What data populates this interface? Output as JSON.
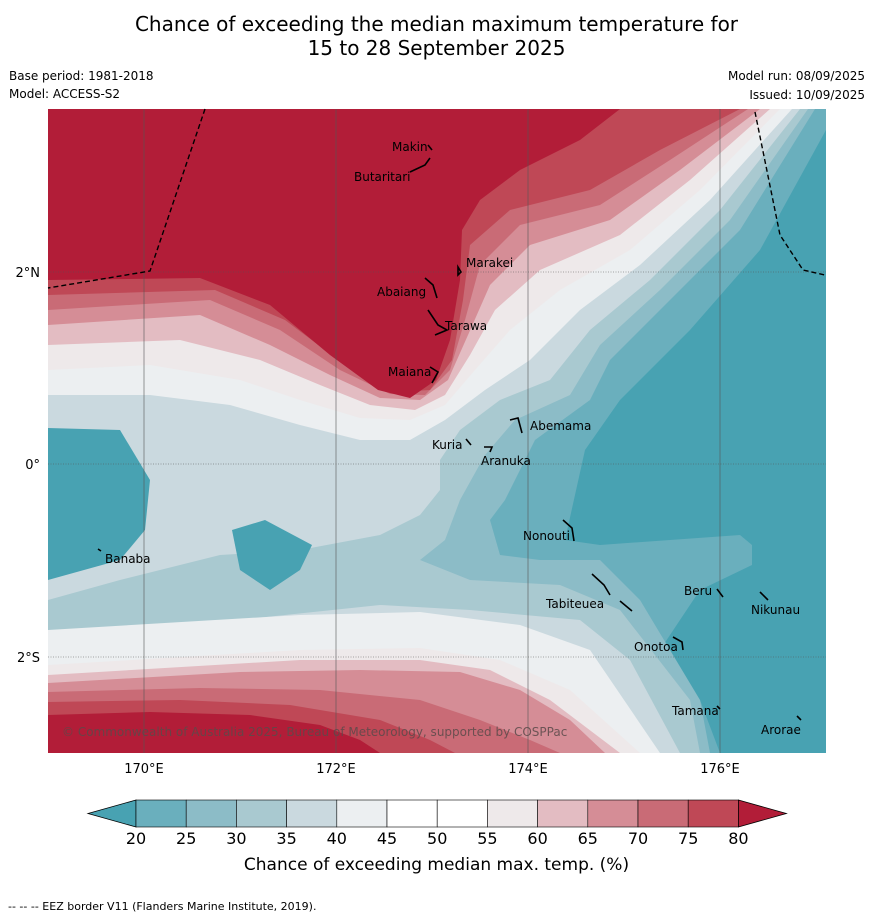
{
  "title_line1": "Chance of exceeding the median maximum temperature for",
  "title_line2": "15 to 28 September 2025",
  "base_period": "Base period: 1981-2018",
  "model": "Model: ACCESS-S2",
  "model_run": "Model run: 08/09/2025",
  "issued": "Issued: 10/09/2025",
  "copyright": "© Commonwealth of Australia 2025, Bureau of Meteorology, supported by COSPPac",
  "footer": "--  --  -- EEZ border V11 (Flanders Marine Institute, 2019).",
  "lat_labels": [
    "2°N",
    "0°",
    "2°S"
  ],
  "lon_labels": [
    "170°E",
    "172°E",
    "174°E",
    "176°E"
  ],
  "places": [
    {
      "name": "Makin"
    },
    {
      "name": "Butaritari"
    },
    {
      "name": "Marakei"
    },
    {
      "name": "Abaiang"
    },
    {
      "name": "Tarawa"
    },
    {
      "name": "Maiana"
    },
    {
      "name": "Abemama"
    },
    {
      "name": "Kuria"
    },
    {
      "name": "Aranuka"
    },
    {
      "name": "Nonouti"
    },
    {
      "name": "Banaba"
    },
    {
      "name": "Beru"
    },
    {
      "name": "Tabiteuea"
    },
    {
      "name": "Nikunau"
    },
    {
      "name": "Onotoa"
    },
    {
      "name": "Tamana"
    },
    {
      "name": "Arorae"
    }
  ],
  "colorbar": {
    "title": "Chance of exceeding median max. temp. (%)",
    "ticks": [
      "20",
      "25",
      "30",
      "35",
      "40",
      "45",
      "50",
      "55",
      "60",
      "65",
      "70",
      "75",
      "80"
    ],
    "colors": [
      "#48a2b2",
      "#6aafbd",
      "#8cbcc7",
      "#a9c9d0",
      "#cad9df",
      "#eceff1",
      "#ffffff",
      "#ffffff",
      "#eee9ea",
      "#e3bcc2",
      "#d58d96",
      "#c96b76",
      "#bf4856",
      "#b21d38"
    ]
  }
}
